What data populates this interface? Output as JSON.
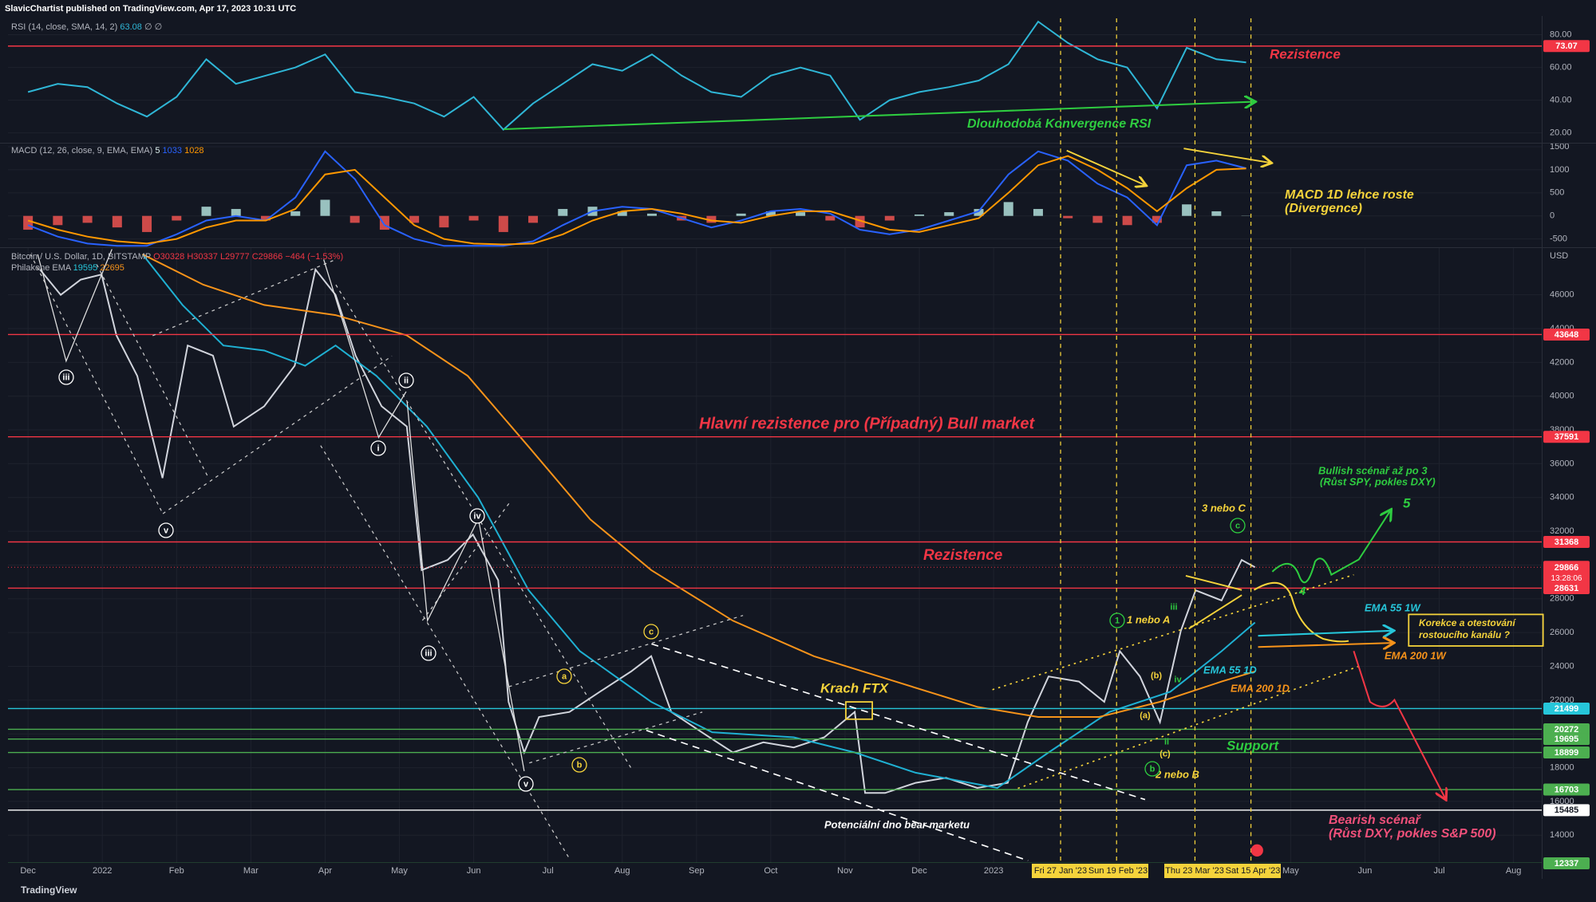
{
  "header": {
    "published": "SlavicChartist published on TradingView.com, Apr 17, 2023 10:31 UTC",
    "footer": "TradingView"
  },
  "chart_data": [
    {
      "type": "line",
      "legend": {
        "title": "RSI (14, close, SMA, 14, 2)",
        "value": 63.08,
        "extra": "∅ ∅"
      },
      "x": [
        0,
        0.4,
        0.8,
        1.2,
        1.6,
        2,
        2.4,
        2.8,
        3.2,
        3.6,
        4,
        4.4,
        4.8,
        5.2,
        5.6,
        6,
        6.4,
        6.8,
        7.2,
        7.6,
        8,
        8.4,
        8.8,
        9.2,
        9.6,
        10,
        10.4,
        10.8,
        11.2,
        11.6,
        12,
        12.4,
        12.8,
        13.2,
        13.6,
        14,
        14.4,
        14.8,
        15.2,
        15.6,
        16,
        16.4
      ],
      "series": [
        {
          "color": "#2fb6d6",
          "values": [
            45,
            50,
            48,
            38,
            30,
            42,
            65,
            50,
            55,
            60,
            68,
            45,
            42,
            38,
            30,
            42,
            22,
            38,
            50,
            62,
            58,
            68,
            55,
            45,
            42,
            55,
            60,
            55,
            28,
            40,
            45,
            48,
            52,
            62,
            88,
            75,
            65,
            60,
            35,
            72,
            65,
            63.08
          ]
        }
      ],
      "xlim": [
        -0.27,
        20.38
      ],
      "ylim": [
        14,
        90
      ],
      "yticks": [
        {
          "value": 20,
          "label": "20.00"
        },
        {
          "value": 40,
          "label": "40.00"
        },
        {
          "value": 60,
          "label": "60.00"
        },
        {
          "value": 80,
          "label": "80.00"
        }
      ],
      "levels": [
        {
          "value": 73.07,
          "color": "#f23645"
        }
      ]
    },
    {
      "type": "bar",
      "legend": {
        "title": "MACD (12, 26, close, 9, EMA, EMA)",
        "values": [
          5,
          1033,
          1028
        ]
      },
      "x": [
        0,
        0.4,
        0.8,
        1.2,
        1.6,
        2,
        2.4,
        2.8,
        3.2,
        3.6,
        4,
        4.4,
        4.8,
        5.2,
        5.6,
        6,
        6.4,
        6.8,
        7.2,
        7.6,
        8,
        8.4,
        8.8,
        9.2,
        9.6,
        10,
        10.4,
        10.8,
        11.2,
        11.6,
        12,
        12.4,
        12.8,
        13.2,
        13.6,
        14,
        14.4,
        14.8,
        15.2,
        15.6,
        16,
        16.4
      ],
      "series": [
        {
          "type": "bar",
          "color": "#b2dfdb",
          "negative_color": "#ef5350",
          "values": [
            -300,
            -200,
            -150,
            -250,
            -350,
            -100,
            200,
            150,
            -100,
            100,
            350,
            -150,
            -300,
            -150,
            -250,
            -100,
            -350,
            -150,
            150,
            200,
            100,
            50,
            -100,
            -150,
            50,
            100,
            80,
            -100,
            -250,
            -100,
            30,
            80,
            150,
            300,
            150,
            -50,
            -150,
            -200,
            -150,
            250,
            100,
            5
          ]
        },
        {
          "type": "line",
          "color": "#2962ff",
          "values": [
            -200,
            -450,
            -600,
            -650,
            -650,
            -400,
            -100,
            0,
            -100,
            400,
            1400,
            800,
            -200,
            -500,
            -650,
            -650,
            -650,
            -550,
            -200,
            100,
            200,
            150,
            -50,
            -250,
            -100,
            100,
            150,
            50,
            -300,
            -400,
            -300,
            -100,
            100,
            900,
            1400,
            1200,
            700,
            400,
            -200,
            1100,
            1200,
            1033
          ]
        },
        {
          "type": "line",
          "color": "#ff9800",
          "values": [
            -100,
            -300,
            -450,
            -550,
            -600,
            -500,
            -250,
            -100,
            -100,
            150,
            900,
            1000,
            400,
            -200,
            -500,
            -600,
            -620,
            -600,
            -400,
            -100,
            100,
            150,
            50,
            -100,
            -150,
            0,
            100,
            100,
            -100,
            -300,
            -350,
            -200,
            -50,
            500,
            1100,
            1300,
            1000,
            600,
            100,
            600,
            1000,
            1028
          ]
        }
      ],
      "xlim": [
        -0.27,
        20.38
      ],
      "ylim": [
        -680,
        1570
      ],
      "yticks": [
        -500,
        0,
        500,
        1000,
        1500
      ]
    },
    {
      "type": "line",
      "legend": {
        "title": "Bitcoin / U.S. Dollar, 1D, BITSTAMP",
        "ohlc": [
          "O30328",
          "H30337",
          "L29777",
          "C29866"
        ],
        "change": "−464 (−1.53%)",
        "ema_title": "Philakone EMA",
        "ema_values": [
          19595,
          22695
        ]
      },
      "currency": "USD",
      "series": [
        {
          "color": "#d1d4dc",
          "x": [
            0.16,
            0.44,
            0.71,
            0.99,
            1.19,
            1.47,
            1.81,
            2.15,
            2.49,
            2.77,
            3.18,
            3.59,
            3.87,
            4.14,
            4.41,
            4.76,
            5.1,
            5.3,
            5.65,
            5.99,
            6.33,
            6.47,
            6.68,
            6.88,
            7.29,
            7.7,
            8.12,
            8.39,
            8.66,
            9.07,
            9.49,
            9.9,
            10.31,
            10.72,
            11.13,
            11.27,
            11.54,
            11.95,
            12.36,
            12.78,
            13.19,
            13.46,
            13.74,
            14.15,
            14.49,
            14.7,
            14.97,
            15.24,
            15.52,
            15.72,
            16.07,
            16.34,
            16.52
          ],
          "values": [
            47500,
            46000,
            46900,
            47200,
            43600,
            41200,
            35150,
            43000,
            42400,
            38200,
            39400,
            41800,
            47500,
            46000,
            42400,
            39400,
            38200,
            29700,
            30300,
            31800,
            29100,
            21900,
            18900,
            21000,
            21300,
            22500,
            23700,
            24600,
            21300,
            20100,
            18900,
            19500,
            19200,
            19800,
            21300,
            16500,
            16500,
            17100,
            17400,
            16800,
            17100,
            20700,
            23400,
            23100,
            21900,
            24900,
            23400,
            20700,
            26100,
            28500,
            27900,
            30300,
            29866
          ]
        },
        {
          "color": "#1fb0d2",
          "x": [
            1.54,
            2.08,
            2.63,
            3.18,
            3.73,
            4.14,
            4.69,
            5.37,
            6.06,
            6.74,
            7.43,
            8.39,
            9.21,
            10.31,
            11.13,
            11.95,
            13.05,
            13.74,
            14.56,
            15.38,
            16.07,
            16.52
          ],
          "values": [
            48400,
            45400,
            43000,
            42700,
            41800,
            43000,
            41200,
            38200,
            34000,
            28500,
            24900,
            21900,
            20100,
            19800,
            18900,
            17700,
            16800,
            18900,
            21300,
            22500,
            24900,
            26600
          ]
        },
        {
          "color": "#f7931a",
          "x": [
            1.54,
            2.36,
            3.18,
            4.14,
            5.1,
            5.92,
            6.74,
            7.57,
            8.39,
            9.49,
            10.58,
            11.68,
            12.78,
            13.6,
            14.42,
            15.24,
            16.07,
            16.52
          ],
          "values": [
            48400,
            46600,
            45400,
            44800,
            43600,
            41200,
            37000,
            32700,
            29700,
            26700,
            24600,
            23100,
            21600,
            21000,
            21000,
            21900,
            23100,
            23700
          ]
        }
      ],
      "xlim": [
        -0.27,
        20.38
      ],
      "ylim": [
        12360,
        48770
      ],
      "xticks": [
        {
          "value": 0,
          "label": "Dec"
        },
        {
          "value": 1,
          "label": "2022"
        },
        {
          "value": 2,
          "label": "Feb"
        },
        {
          "value": 3,
          "label": "Mar"
        },
        {
          "value": 4,
          "label": "Apr"
        },
        {
          "value": 5,
          "label": "May"
        },
        {
          "value": 6,
          "label": "Jun"
        },
        {
          "value": 7,
          "label": "Jul"
        },
        {
          "value": 8,
          "label": "Aug"
        },
        {
          "value": 9,
          "label": "Sep"
        },
        {
          "value": 10,
          "label": "Oct"
        },
        {
          "value": 11,
          "label": "Nov"
        },
        {
          "value": 12,
          "label": "Dec"
        },
        {
          "value": 13,
          "label": "2023"
        },
        {
          "value": 17,
          "label": "May"
        },
        {
          "value": 18,
          "label": "Jun"
        },
        {
          "value": 19,
          "label": "Jul"
        },
        {
          "value": 20,
          "label": "Aug"
        }
      ],
      "yticks": [
        14000,
        16000,
        18000,
        20000,
        22000,
        24000,
        26000,
        28000,
        30000,
        32000,
        34000,
        36000,
        38000,
        40000,
        42000,
        44000,
        46000
      ],
      "levels": [
        {
          "value": 43648,
          "color": "#f23645"
        },
        {
          "value": 37591,
          "color": "#f23645"
        },
        {
          "value": 31368,
          "color": "#f23645"
        },
        {
          "value": 28631,
          "color": "#f23645"
        },
        {
          "value": 21499,
          "color": "#26c6da"
        },
        {
          "value": 20272,
          "color": "#4caf50"
        },
        {
          "value": 19695,
          "color": "#4caf50"
        },
        {
          "value": 18899,
          "color": "#4caf50"
        },
        {
          "value": 16703,
          "color": "#4caf50"
        },
        {
          "value": 15485,
          "color": "#ffffff"
        },
        {
          "value": 12337,
          "color": "#4caf50"
        }
      ],
      "current": {
        "value": 29866,
        "time": "13:28:06",
        "color": "#f23645"
      }
    }
  ],
  "annotations": [
    {
      "text": "Rezistence",
      "color": "#f23645"
    },
    {
      "text": "Dlouhodobá Konvergence RSI",
      "color": "#2ecc40"
    },
    {
      "text": "MACD 1D lehce roste",
      "color": "#f5d33b"
    },
    {
      "text": "(Divergence)",
      "color": "#f5d33b"
    },
    {
      "text": "Hlavní rezistence pro (Případný) Bull market",
      "color": "#f23645"
    },
    {
      "text": "Rezistence",
      "color": "#f23645"
    },
    {
      "text": "Krach FTX",
      "color": "#f5d33b"
    },
    {
      "text": "Potenciální dno bear marketu",
      "color": "#ffffff"
    },
    {
      "text": "Support",
      "color": "#2ecc40"
    },
    {
      "text": "Bullish scénař až po 3",
      "color": "#2ecc40"
    },
    {
      "text": "(Růst SPY, pokles DXY)",
      "color": "#2ecc40"
    },
    {
      "text": "5",
      "color": "#2ecc40"
    },
    {
      "text": "4",
      "color": "#2ecc40"
    },
    {
      "text": "3 nebo C",
      "color": "#f5d33b"
    },
    {
      "text": "1 nebo A",
      "color": "#f5d33b"
    },
    {
      "text": "EMA 55 1W",
      "color": "#26c6da"
    },
    {
      "text": "Korekce a otestování",
      "color": "#f5d33b"
    },
    {
      "text": "rostoucího kanálu ?",
      "color": "#f5d33b"
    },
    {
      "text": "EMA 200 1W",
      "color": "#f7931a"
    },
    {
      "text": "EMA 55 1D",
      "color": "#26c6da"
    },
    {
      "text": "EMA 200 1D",
      "color": "#f7931a"
    },
    {
      "text": "2 nebo B",
      "color": "#f5d33b"
    },
    {
      "text": "Bearish scénař",
      "color": "#f0507a"
    },
    {
      "text": "(Růst DXY, pokles S&P 500)",
      "color": "#f0507a"
    }
  ],
  "wave_labels": [
    {
      "text": "iii",
      "color": "#ffffff",
      "circled": true
    },
    {
      "text": "v",
      "color": "#ffffff",
      "circled": true
    },
    {
      "text": "i",
      "color": "#ffffff",
      "circled": true
    },
    {
      "text": "ii",
      "color": "#ffffff",
      "circled": true
    },
    {
      "text": "iv",
      "color": "#ffffff",
      "circled": true
    },
    {
      "text": "iii",
      "color": "#ffffff",
      "circled": true
    },
    {
      "text": "v",
      "color": "#ffffff",
      "circled": true
    },
    {
      "text": "a",
      "color": "#f5d33b",
      "circled": true
    },
    {
      "text": "b",
      "color": "#f5d33b",
      "circled": true
    },
    {
      "text": "c",
      "color": "#f5d33b",
      "circled": true
    },
    {
      "text": "(a)",
      "color": "#f5d33b",
      "circled": false
    },
    {
      "text": "(b)",
      "color": "#f5d33b",
      "circled": false
    },
    {
      "text": "(c)",
      "color": "#f5d33b",
      "circled": false
    },
    {
      "text": "ii",
      "color": "#2ecc40",
      "circled": false
    },
    {
      "text": "iii",
      "color": "#2ecc40",
      "circled": false
    },
    {
      "text": "iv",
      "color": "#2ecc40",
      "circled": false
    },
    {
      "text": "c",
      "color": "#2ecc40",
      "circled": true
    },
    {
      "text": "b",
      "color": "#2ecc40",
      "circled": true
    },
    {
      "text": "1",
      "color": "#2ecc40",
      "circled": true
    }
  ],
  "date_labels": [
    "Fri 27 Jan '23",
    "Sun 19 Feb '23",
    "Thu 23 Mar '23",
    "Sat 15 Apr '23"
  ]
}
